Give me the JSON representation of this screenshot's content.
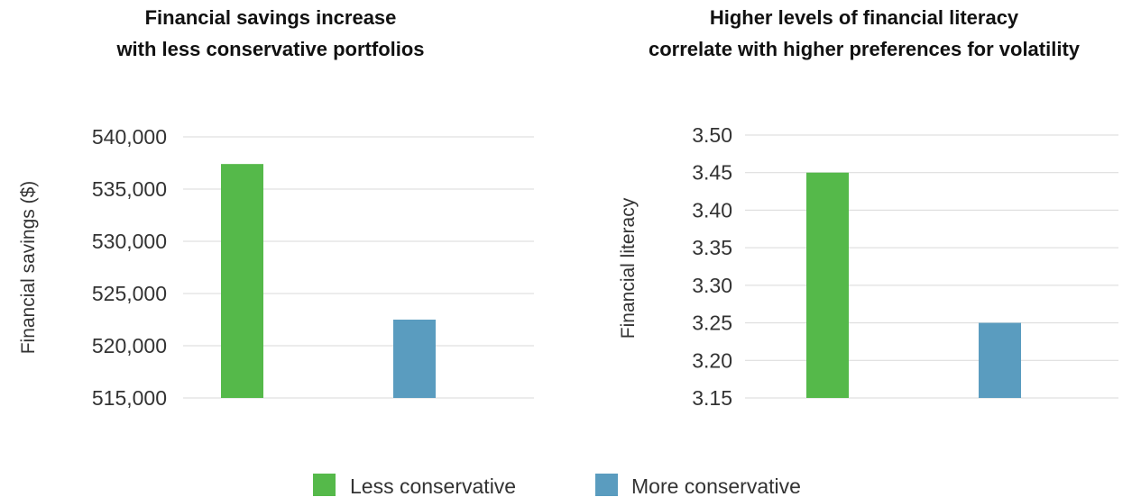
{
  "legend": {
    "items": [
      {
        "label": "Less conservative",
        "color": "#55b94a"
      },
      {
        "label": "More conservative",
        "color": "#5a9cbf"
      }
    ]
  },
  "chart_data": [
    {
      "type": "bar",
      "title": "Financial savings increase with less conservative portfolios",
      "title_lines": [
        "Financial savings increase",
        "with less conservative portfolios"
      ],
      "xlabel": "",
      "ylabel": "Financial savings ($)",
      "ylim": [
        515000,
        540000
      ],
      "yticks": [
        515000,
        520000,
        525000,
        530000,
        535000,
        540000
      ],
      "ytick_labels": [
        "515,000",
        "520,000",
        "525,000",
        "530,000",
        "535,000",
        "540,000"
      ],
      "grid": true,
      "legend_position": "bottom-center",
      "series": [
        {
          "name": "Less conservative",
          "value": 537400,
          "color": "#55b94a"
        },
        {
          "name": "More conservative",
          "value": 522500,
          "color": "#5a9cbf"
        }
      ]
    },
    {
      "type": "bar",
      "title": "Higher levels of financial literacy correlate with higher preferences for volatility",
      "title_lines": [
        "Higher levels of financial literacy",
        "correlate with higher preferences for volatility"
      ],
      "xlabel": "",
      "ylabel": "Financial literacy",
      "ylim": [
        3.15,
        3.5
      ],
      "yticks": [
        3.15,
        3.2,
        3.25,
        3.3,
        3.35,
        3.4,
        3.45,
        3.5
      ],
      "ytick_labels": [
        "3.15",
        "3.20",
        "3.25",
        "3.30",
        "3.35",
        "3.40",
        "3.45",
        "3.50"
      ],
      "grid": true,
      "legend_position": "bottom-center",
      "series": [
        {
          "name": "Less conservative",
          "value": 3.45,
          "color": "#55b94a"
        },
        {
          "name": "More conservative",
          "value": 3.25,
          "color": "#5a9cbf"
        }
      ]
    }
  ]
}
